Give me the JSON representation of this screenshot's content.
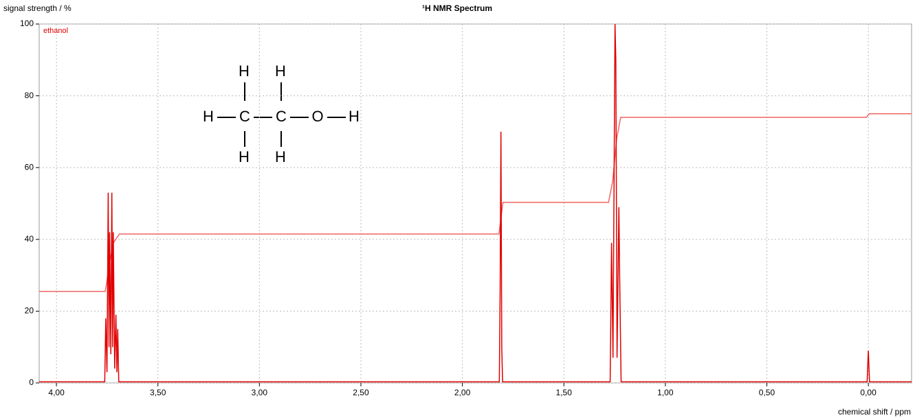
{
  "chart_data": {
    "type": "line",
    "title": "¹H NMR Spectrum",
    "y_label": "signal strength / %",
    "x_label": "chemical shift / ppm",
    "xlim": [
      4.085,
      -0.213
    ],
    "ylim": [
      0,
      100
    ],
    "xticks": [
      {
        "value": 4,
        "label": "4,00"
      },
      {
        "value": 3.5,
        "label": "3,50"
      },
      {
        "value": 3,
        "label": "3,00"
      },
      {
        "value": 2.5,
        "label": "2,50"
      },
      {
        "value": 2,
        "label": "2,00"
      },
      {
        "value": 1.5,
        "label": "1,50"
      },
      {
        "value": 1,
        "label": "1,00"
      },
      {
        "value": 0.5,
        "label": "0,50"
      },
      {
        "value": 0,
        "label": "0,00"
      }
    ],
    "yticks": [
      0,
      20,
      40,
      60,
      80,
      100
    ],
    "grid": true,
    "legend": "top-left",
    "molecule_atoms": [
      "H",
      "H",
      "H",
      "C",
      "C",
      "O",
      "H",
      "H",
      "H"
    ],
    "series": [
      {
        "name": "ethanol",
        "color": "#e00000",
        "x": [
          4.085,
          3.762,
          3.757,
          3.751,
          3.745,
          3.741,
          3.738,
          3.732,
          3.727,
          3.723,
          3.72,
          3.713,
          3.707,
          3.702,
          3.698,
          3.693,
          1.818,
          1.814,
          1.81,
          1.806,
          1.802,
          1.272,
          1.265,
          1.258,
          1.248,
          1.244,
          1.238,
          1.229,
          1.225,
          1.218,
          0.006,
          0,
          -0.006,
          -0.213
        ],
        "values": [
          0.3,
          0.3,
          18,
          3,
          53,
          10,
          42,
          8,
          53,
          10,
          42,
          4,
          19,
          3,
          15,
          0.3,
          0.3,
          26,
          70,
          10,
          0.3,
          0.3,
          39,
          7,
          100,
          90,
          7,
          49,
          29,
          0.3,
          0.3,
          9,
          0.3,
          0.3
        ]
      },
      {
        "color": "#f06464",
        "x": [
          4.085,
          3.76,
          3.755,
          3.74,
          3.72,
          3.69,
          1.82,
          1.8,
          1.28,
          1.26,
          1.24,
          1.22,
          0.01,
          -0.005,
          -0.213
        ],
        "values": [
          25.5,
          25.5,
          27,
          33,
          39,
          41.5,
          41.5,
          50.3,
          50.3,
          56,
          68,
          74,
          74,
          75,
          75
        ]
      }
    ]
  }
}
